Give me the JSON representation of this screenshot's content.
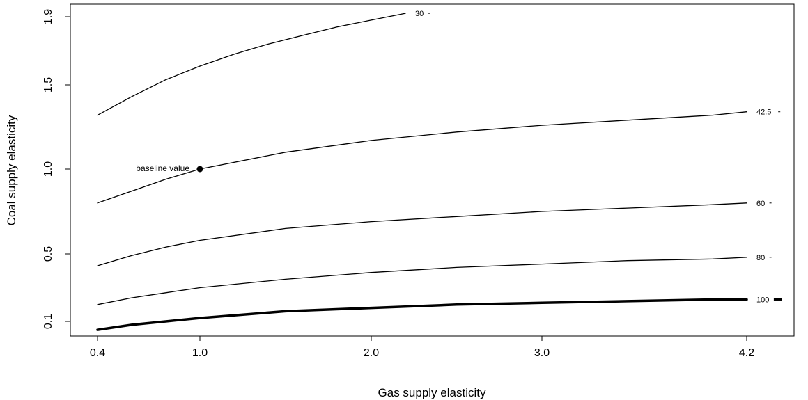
{
  "chart_data": {
    "type": "line",
    "xlabel": "Gas supply elasticity",
    "ylabel": "Coal supply elasticity",
    "x_ticks": [
      "0.4",
      "1.0",
      "2.0",
      "3.0",
      "4.2"
    ],
    "y_ticks": [
      "0.1",
      "0.5",
      "1.0",
      "1.5",
      "1.9"
    ],
    "grid": false,
    "legend": "none",
    "series": [
      {
        "name": "30",
        "x": [
          0.4,
          0.6,
          0.8,
          1.0,
          1.2,
          1.4,
          1.6,
          1.8,
          2.0,
          2.2
        ],
        "y": [
          1.32,
          1.43,
          1.53,
          1.61,
          1.68,
          1.74,
          1.79,
          1.84,
          1.88,
          1.92
        ],
        "width": "thin"
      },
      {
        "name": "42.5",
        "x": [
          0.4,
          0.6,
          0.8,
          1.0,
          1.5,
          2.0,
          2.5,
          3.0,
          3.5,
          4.0,
          4.2
        ],
        "y": [
          0.8,
          0.87,
          0.94,
          1.0,
          1.1,
          1.17,
          1.22,
          1.26,
          1.29,
          1.32,
          1.34
        ],
        "width": "thin"
      },
      {
        "name": "60",
        "x": [
          0.4,
          0.6,
          0.8,
          1.0,
          1.5,
          2.0,
          2.5,
          3.0,
          3.5,
          4.0,
          4.2
        ],
        "y": [
          0.43,
          0.49,
          0.54,
          0.58,
          0.65,
          0.69,
          0.72,
          0.75,
          0.77,
          0.79,
          0.8
        ],
        "width": "thin"
      },
      {
        "name": "80",
        "x": [
          0.4,
          0.6,
          0.8,
          1.0,
          1.5,
          2.0,
          2.5,
          3.0,
          3.5,
          4.0,
          4.2
        ],
        "y": [
          0.2,
          0.24,
          0.27,
          0.3,
          0.35,
          0.39,
          0.42,
          0.44,
          0.46,
          0.47,
          0.48
        ],
        "width": "thin"
      },
      {
        "name": "100",
        "x": [
          0.4,
          0.6,
          0.8,
          1.0,
          1.5,
          2.0,
          2.5,
          3.0,
          3.5,
          4.0,
          4.2
        ],
        "y": [
          0.05,
          0.08,
          0.1,
          0.12,
          0.16,
          0.18,
          0.2,
          0.21,
          0.22,
          0.23,
          0.23
        ],
        "width": "thick"
      }
    ],
    "annotations": [
      {
        "text": "baseline value",
        "x": 1.0,
        "y": 1.0,
        "marker": "point"
      }
    ]
  }
}
